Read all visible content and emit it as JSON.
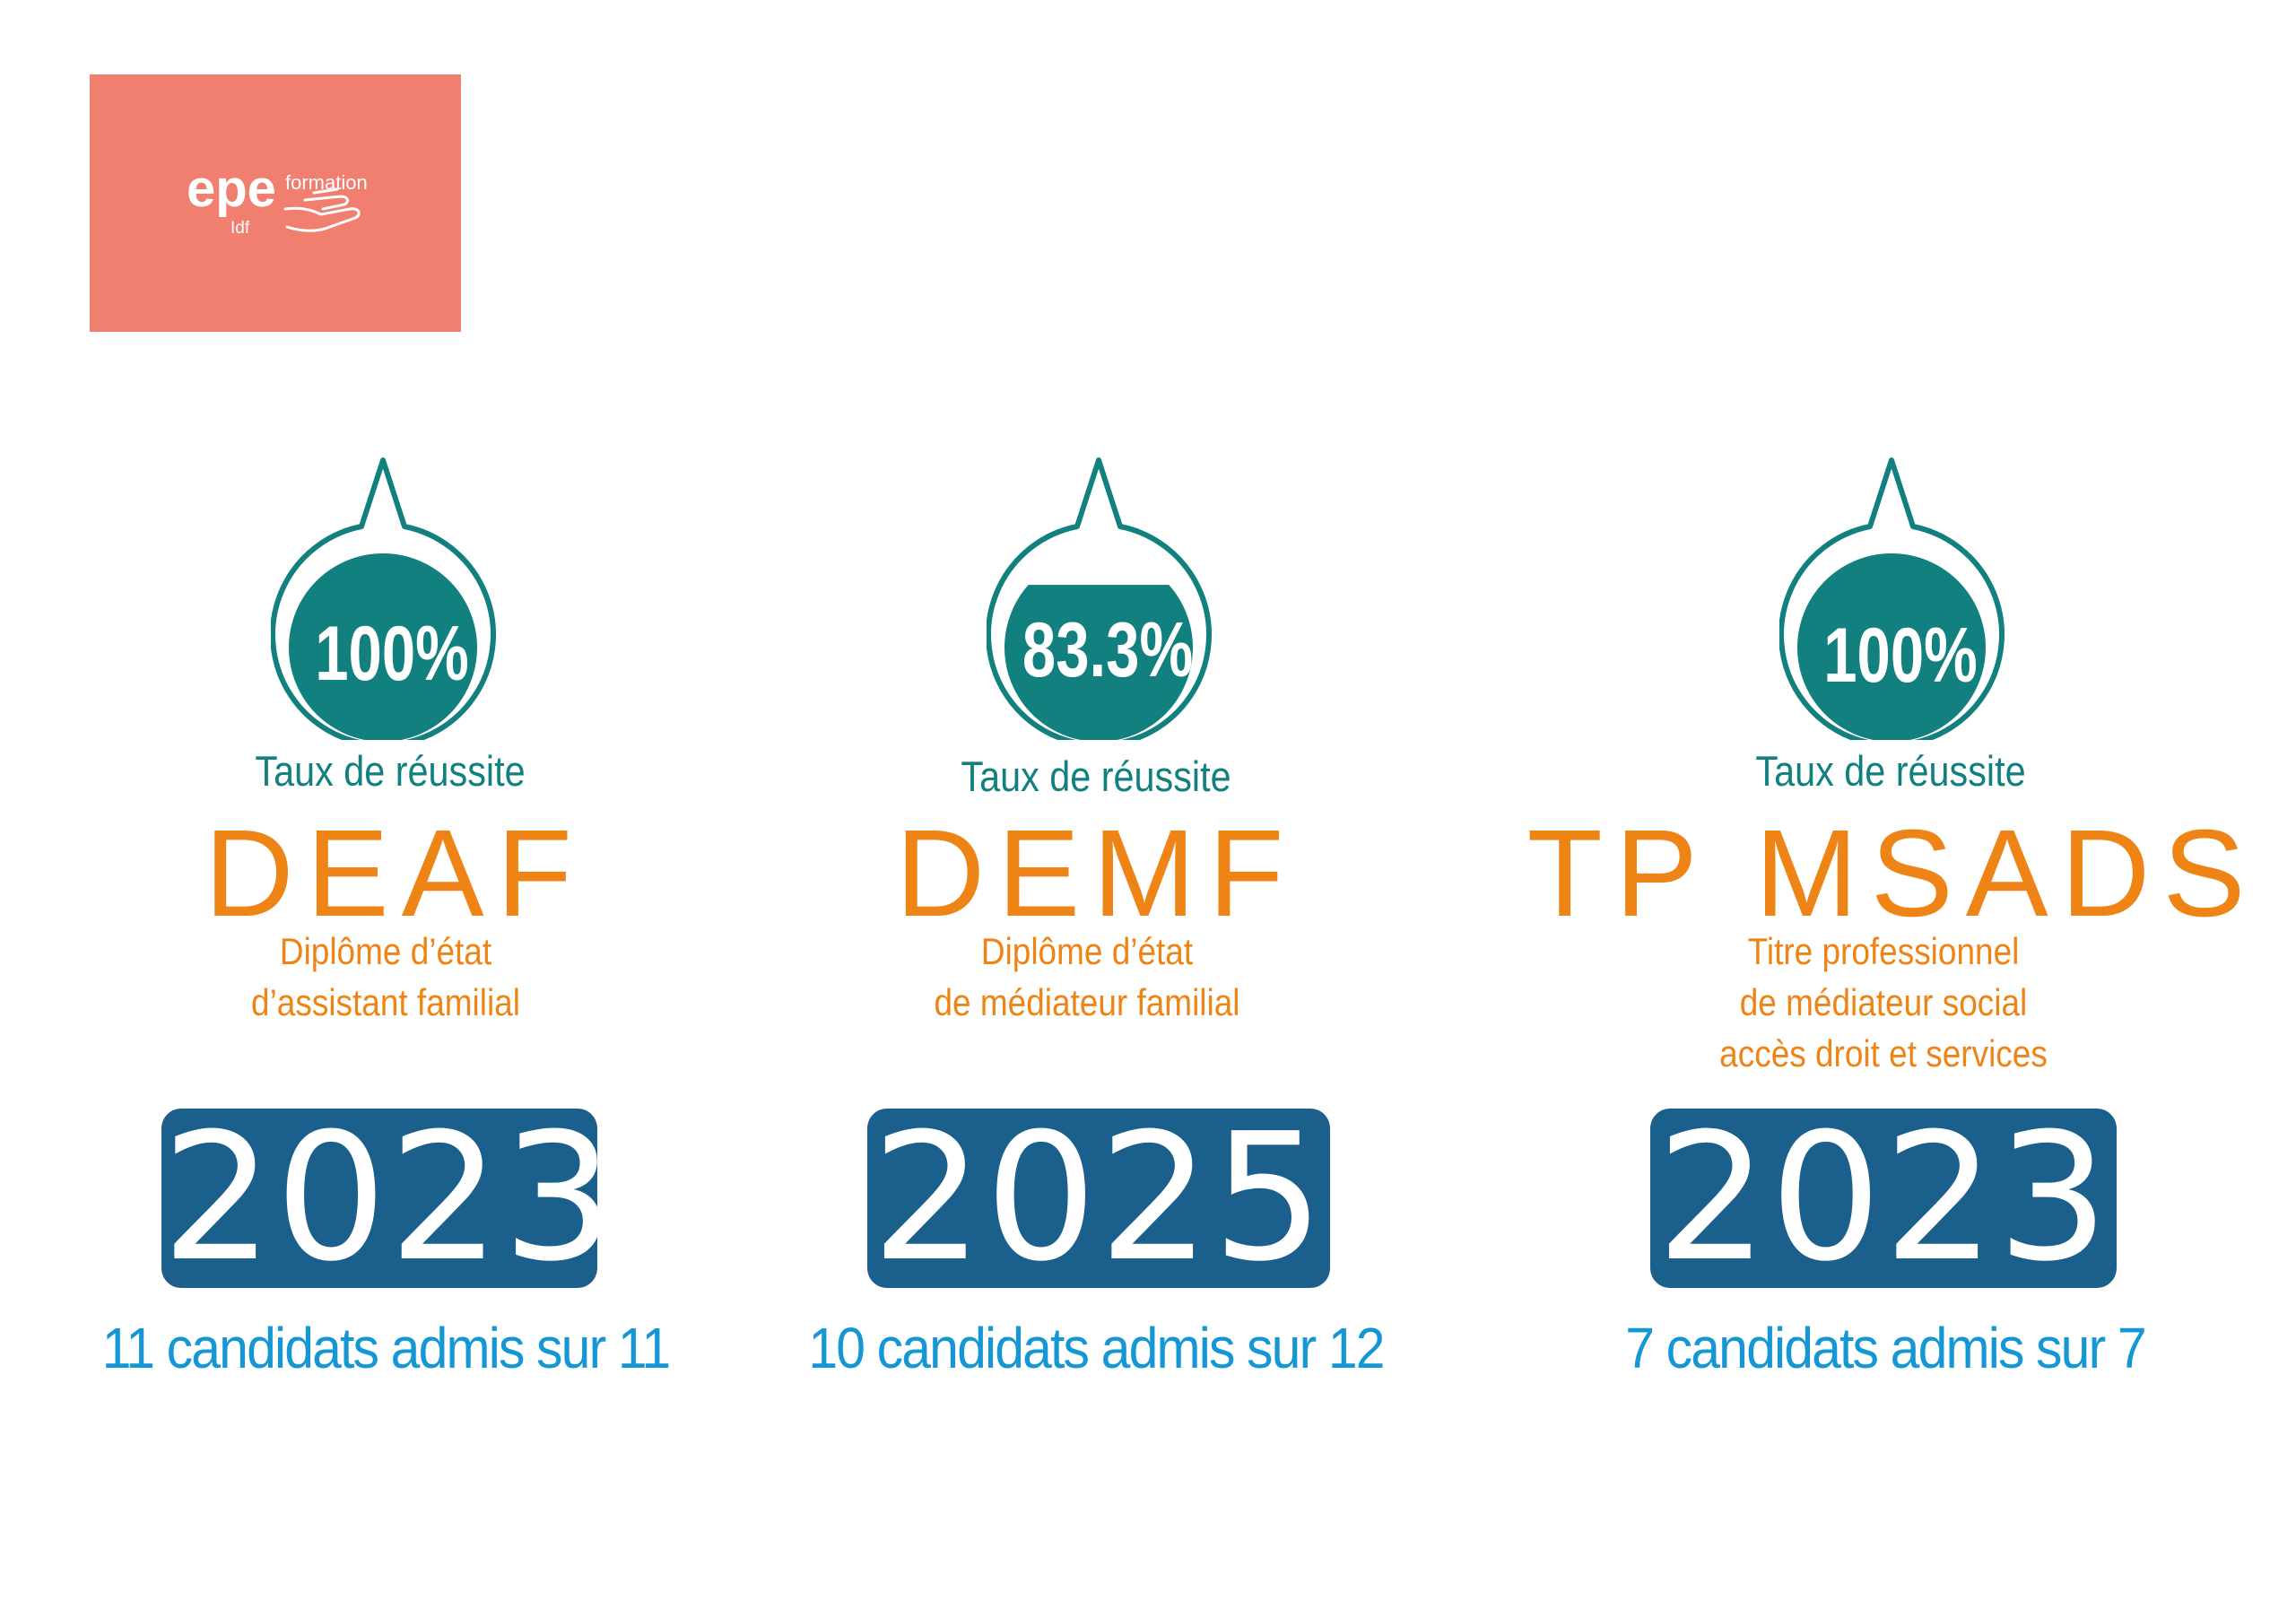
{
  "logo": {
    "brand": "epe",
    "region": "Idf",
    "formation": "formation",
    "bg_color": "#f07f6f"
  },
  "colors": {
    "teal": "#12807f",
    "orange": "#ee8416",
    "navy": "#1b5f8c",
    "blue_text": "#1497d4"
  },
  "cards": [
    {
      "rate": "100%",
      "fill": 1.0,
      "label": "Taux de réussite",
      "code": "DEAF",
      "description": [
        "Diplôme d’état",
        "d’assistant familial"
      ],
      "year": "2023",
      "admitted": "11 candidats admis sur 11"
    },
    {
      "rate": "83.3%",
      "fill": 0.833,
      "label": "Taux de réussite",
      "code": "DEMF",
      "description": [
        "Diplôme d’état",
        "de médiateur familial"
      ],
      "year": "2025",
      "admitted": "10 candidats admis sur 12"
    },
    {
      "rate": "100%",
      "fill": 1.0,
      "label": "Taux de réussite",
      "code": "TP MSADS",
      "description": [
        "Titre professionnel",
        "de médiateur social",
        "accès droit et services"
      ],
      "year": "2023",
      "admitted": "7 candidats admis sur 7"
    }
  ]
}
